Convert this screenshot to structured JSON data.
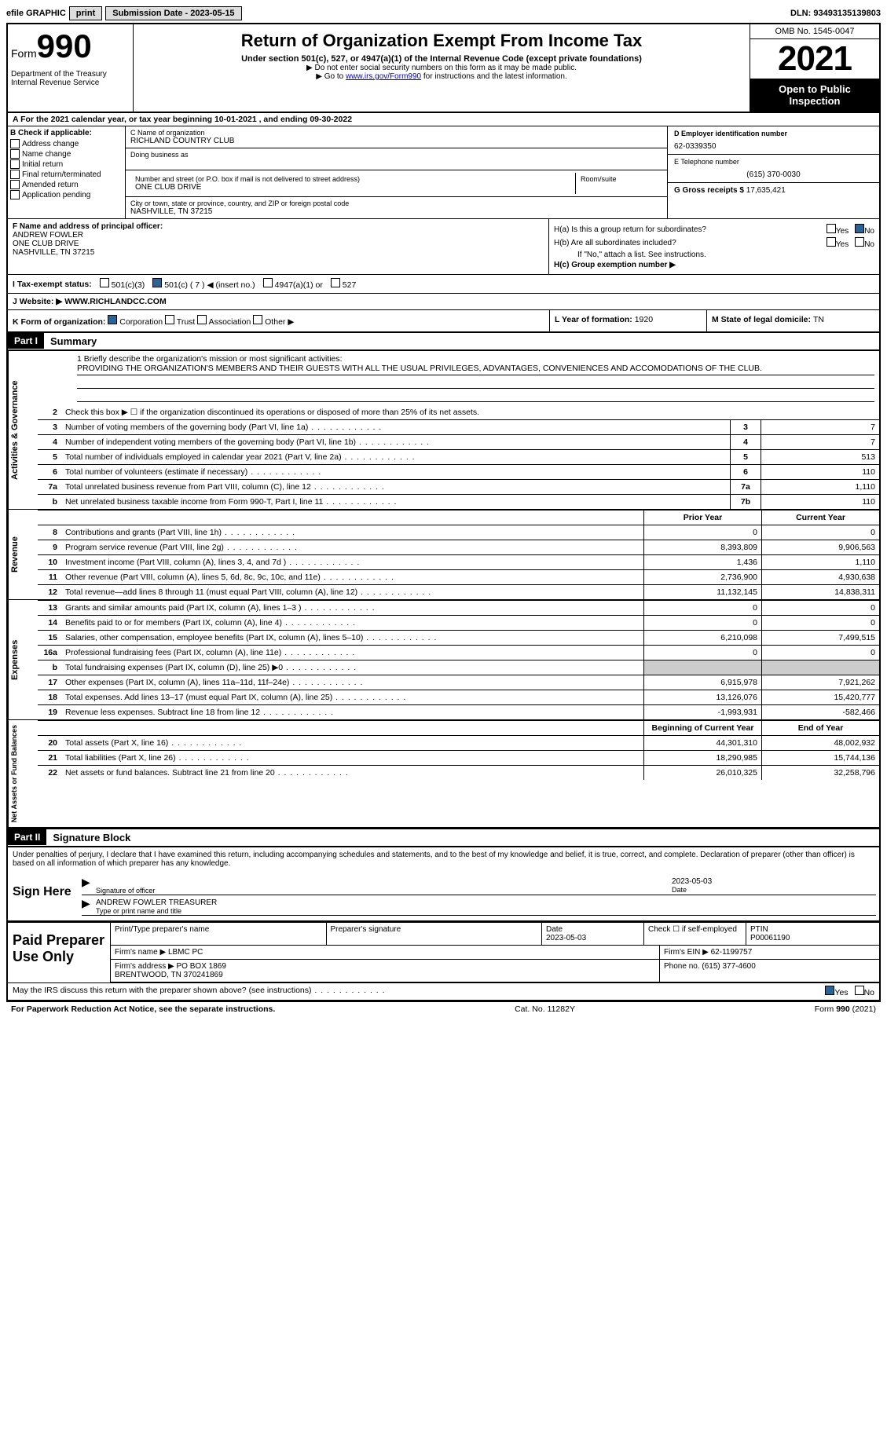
{
  "topbar": {
    "efile": "efile GRAPHIC",
    "print": "print",
    "subdate_label": "Submission Date - ",
    "subdate": "2023-05-15",
    "dln_label": "DLN: ",
    "dln": "93493135139803"
  },
  "header": {
    "form_word": "Form",
    "form_num": "990",
    "dept": "Department of the Treasury\nInternal Revenue Service",
    "title": "Return of Organization Exempt From Income Tax",
    "sub": "Under section 501(c), 527, or 4947(a)(1) of the Internal Revenue Code (except private foundations)",
    "sub2": "▶ Do not enter social security numbers on this form as it may be made public.",
    "sub3_pre": "▶ Go to ",
    "sub3_link": "www.irs.gov/Form990",
    "sub3_post": " for instructions and the latest information.",
    "omb": "OMB No. 1545-0047",
    "year": "2021",
    "open": "Open to Public Inspection"
  },
  "row_a": "A For the 2021 calendar year, or tax year beginning 10-01-2021    , and ending 09-30-2022",
  "col_b": {
    "label": "B Check if applicable:",
    "items": [
      "Address change",
      "Name change",
      "Initial return",
      "Final return/terminated",
      "Amended return",
      "Application pending"
    ]
  },
  "col_c": {
    "name_lbl": "C Name of organization",
    "name": "RICHLAND COUNTRY CLUB",
    "dba_lbl": "Doing business as",
    "street_lbl": "Number and street (or P.O. box if mail is not delivered to street address)",
    "room_lbl": "Room/suite",
    "street": "ONE CLUB DRIVE",
    "city_lbl": "City or town, state or province, country, and ZIP or foreign postal code",
    "city": "NASHVILLE, TN  37215"
  },
  "col_d": {
    "ein_lbl": "D Employer identification number",
    "ein": "62-0339350",
    "phone_lbl": "E Telephone number",
    "phone": "(615) 370-0030",
    "gross_lbl": "G Gross receipts $ ",
    "gross": "17,635,421"
  },
  "officer": {
    "lbl": "F Name and address of principal officer:",
    "name": "ANDREW FOWLER",
    "street": "ONE CLUB DRIVE",
    "city": "NASHVILLE, TN  37215",
    "ha": "H(a)  Is this a group return for subordinates?",
    "hb": "H(b)  Are all subordinates included?",
    "hb_note": "If \"No,\" attach a list. See instructions.",
    "hc": "H(c)  Group exemption number ▶",
    "yes": "Yes",
    "no": "No"
  },
  "tax_status": {
    "lbl_i": "I   Tax-exempt status:",
    "c3": "501(c)(3)",
    "c": "501(c) ( 7 ) ◀ (insert no.)",
    "a1": "4947(a)(1) or",
    "s527": "527"
  },
  "website": {
    "lbl": "J  Website: ▶ ",
    "val": "WWW.RICHLANDCC.COM"
  },
  "korg": {
    "lbl": "K Form of organization:",
    "corp": "Corporation",
    "trust": "Trust",
    "assoc": "Association",
    "other": "Other ▶",
    "year_lbl": "L Year of formation: ",
    "year": "1920",
    "state_lbl": "M State of legal domicile: ",
    "state": "TN"
  },
  "part1": {
    "hdr": "Part I",
    "title": "Summary",
    "mission_lbl": "1   Briefly describe the organization's mission or most significant activities:",
    "mission": "PROVIDING THE ORGANIZATION'S MEMBERS AND THEIR GUESTS WITH ALL THE USUAL PRIVILEGES, ADVANTAGES, CONVENIENCES AND ACCOMODATIONS OF THE CLUB.",
    "line2": "Check this box ▶ ☐  if the organization discontinued its operations or disposed of more than 25% of its net assets.",
    "tabs": {
      "ag": "Activities & Governance",
      "rev": "Revenue",
      "exp": "Expenses",
      "net": "Net Assets or Fund Balances"
    },
    "lines_ag": [
      {
        "n": "3",
        "t": "Number of voting members of the governing body (Part VI, line 1a)",
        "box": "3",
        "v": "7"
      },
      {
        "n": "4",
        "t": "Number of independent voting members of the governing body (Part VI, line 1b)",
        "box": "4",
        "v": "7"
      },
      {
        "n": "5",
        "t": "Total number of individuals employed in calendar year 2021 (Part V, line 2a)",
        "box": "5",
        "v": "513"
      },
      {
        "n": "6",
        "t": "Total number of volunteers (estimate if necessary)",
        "box": "6",
        "v": "110"
      },
      {
        "n": "7a",
        "t": "Total unrelated business revenue from Part VIII, column (C), line 12",
        "box": "7a",
        "v": "1,110"
      },
      {
        "n": "b",
        "t": "Net unrelated business taxable income from Form 990-T, Part I, line 11",
        "box": "7b",
        "v": "110"
      }
    ],
    "prior_hdr": "Prior Year",
    "curr_hdr": "Current Year",
    "lines_rev": [
      {
        "n": "8",
        "t": "Contributions and grants (Part VIII, line 1h)",
        "p": "0",
        "c": "0"
      },
      {
        "n": "9",
        "t": "Program service revenue (Part VIII, line 2g)",
        "p": "8,393,809",
        "c": "9,906,563"
      },
      {
        "n": "10",
        "t": "Investment income (Part VIII, column (A), lines 3, 4, and 7d )",
        "p": "1,436",
        "c": "1,110"
      },
      {
        "n": "11",
        "t": "Other revenue (Part VIII, column (A), lines 5, 6d, 8c, 9c, 10c, and 11e)",
        "p": "2,736,900",
        "c": "4,930,638"
      },
      {
        "n": "12",
        "t": "Total revenue—add lines 8 through 11 (must equal Part VIII, column (A), line 12)",
        "p": "11,132,145",
        "c": "14,838,311"
      }
    ],
    "lines_exp": [
      {
        "n": "13",
        "t": "Grants and similar amounts paid (Part IX, column (A), lines 1–3 )",
        "p": "0",
        "c": "0"
      },
      {
        "n": "14",
        "t": "Benefits paid to or for members (Part IX, column (A), line 4)",
        "p": "0",
        "c": "0"
      },
      {
        "n": "15",
        "t": "Salaries, other compensation, employee benefits (Part IX, column (A), lines 5–10)",
        "p": "6,210,098",
        "c": "7,499,515"
      },
      {
        "n": "16a",
        "t": "Professional fundraising fees (Part IX, column (A), line 11e)",
        "p": "0",
        "c": "0"
      },
      {
        "n": "b",
        "t": "Total fundraising expenses (Part IX, column (D), line 25) ▶0",
        "p": "",
        "c": "",
        "grey": true
      },
      {
        "n": "17",
        "t": "Other expenses (Part IX, column (A), lines 11a–11d, 11f–24e)",
        "p": "6,915,978",
        "c": "7,921,262"
      },
      {
        "n": "18",
        "t": "Total expenses. Add lines 13–17 (must equal Part IX, column (A), line 25)",
        "p": "13,126,076",
        "c": "15,420,777"
      },
      {
        "n": "19",
        "t": "Revenue less expenses. Subtract line 18 from line 12",
        "p": "-1,993,931",
        "c": "-582,466"
      }
    ],
    "begin_hdr": "Beginning of Current Year",
    "end_hdr": "End of Year",
    "lines_net": [
      {
        "n": "20",
        "t": "Total assets (Part X, line 16)",
        "p": "44,301,310",
        "c": "48,002,932"
      },
      {
        "n": "21",
        "t": "Total liabilities (Part X, line 26)",
        "p": "18,290,985",
        "c": "15,744,136"
      },
      {
        "n": "22",
        "t": "Net assets or fund balances. Subtract line 21 from line 20",
        "p": "26,010,325",
        "c": "32,258,796"
      }
    ]
  },
  "part2": {
    "hdr": "Part II",
    "title": "Signature Block",
    "decl": "Under penalties of perjury, I declare that I have examined this return, including accompanying schedules and statements, and to the best of my knowledge and belief, it is true, correct, and complete. Declaration of preparer (other than officer) is based on all information of which preparer has any knowledge.",
    "sign_here": "Sign Here",
    "sig_of_officer": "Signature of officer",
    "sig_date": "2023-05-03",
    "date_lbl": "Date",
    "officer_name": "ANDREW FOWLER  TREASURER",
    "type_name_lbl": "Type or print name and title",
    "paid": "Paid Preparer Use Only",
    "print_lbl": "Print/Type preparer's name",
    "prep_sig_lbl": "Preparer's signature",
    "prep_date_lbl": "Date",
    "prep_date": "2023-05-03",
    "check_if": "Check ☐ if self-employed",
    "ptin_lbl": "PTIN",
    "ptin": "P00061190",
    "firm_name_lbl": "Firm's name    ▶ ",
    "firm_name": "LBMC PC",
    "firm_ein_lbl": "Firm's EIN ▶ ",
    "firm_ein": "62-1199757",
    "firm_addr_lbl": "Firm's address ▶ ",
    "firm_addr": "PO BOX 1869\nBRENTWOOD, TN  370241869",
    "phone_lbl": "Phone no. ",
    "phone": "(615) 377-4600",
    "discuss": "May the IRS discuss this return with the preparer shown above? (see instructions)",
    "yes": "Yes",
    "no": "No"
  },
  "footer": {
    "left": "For Paperwork Reduction Act Notice, see the separate instructions.",
    "mid": "Cat. No. 11282Y",
    "right": "Form 990 (2021)"
  }
}
